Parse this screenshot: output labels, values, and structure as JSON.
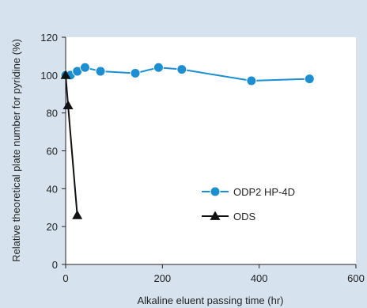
{
  "chart_data": {
    "type": "line",
    "title": "",
    "xlabel": "Alkaline eluent passing time (hr)",
    "ylabel": "Relative theoretical plate number for pyridine (%)",
    "xlim": [
      0,
      600
    ],
    "ylim": [
      0,
      120
    ],
    "xticks": [
      "0",
      "200",
      "400",
      "600"
    ],
    "yticks": [
      "0",
      "20",
      "40",
      "60",
      "80",
      "100",
      "120"
    ],
    "grid": false,
    "legend_position": "right",
    "series": [
      {
        "name": "ODP2 HP-4D",
        "marker": "circle",
        "color": "#1a8fd4",
        "x": [
          0,
          10,
          24,
          40,
          72,
          144,
          192,
          240,
          384,
          504
        ],
        "y": [
          100,
          100,
          102,
          104,
          102,
          101,
          104,
          103,
          97,
          98
        ]
      },
      {
        "name": "ODS",
        "marker": "triangle",
        "color": "#111111",
        "x": [
          0,
          5,
          24
        ],
        "y": [
          100,
          84,
          26
        ]
      }
    ]
  },
  "colors": {
    "background": "#d6e3ee",
    "plot_area": "#ffffff",
    "axis": "#222222"
  }
}
